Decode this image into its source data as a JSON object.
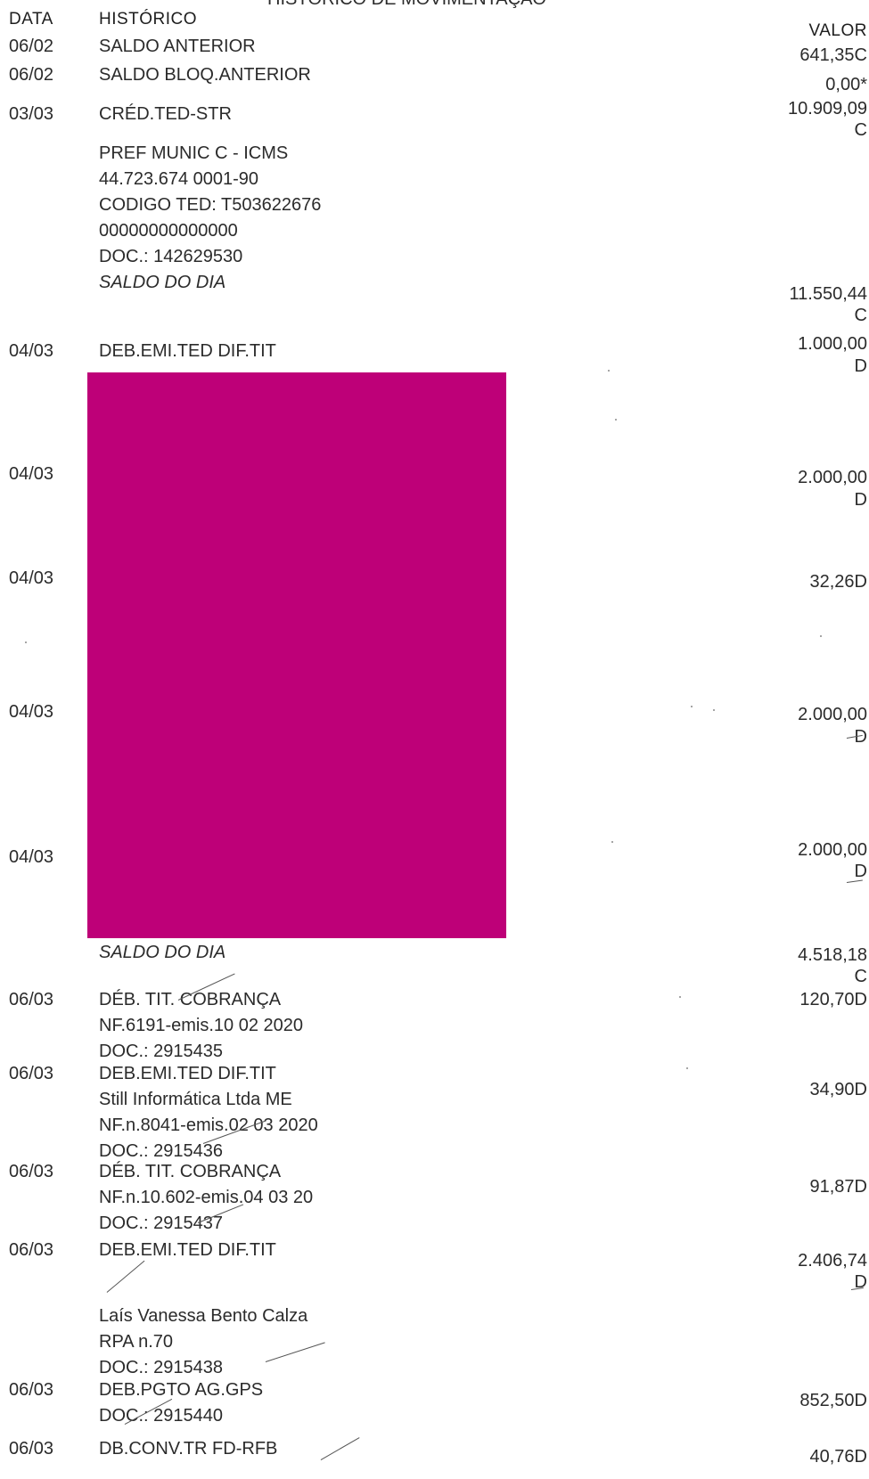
{
  "header": {
    "title_partial": "HISTÓRICO DE MOVIMENTAÇÃO",
    "col_data": "DATA",
    "col_historico": "HISTÓRICO",
    "col_valor": "VALOR"
  },
  "redaction_color": "#BE0078",
  "rows": {
    "r1": {
      "date": "06/02",
      "desc": "SALDO ANTERIOR",
      "value": "641,35C"
    },
    "r2": {
      "date": "06/02",
      "desc": "SALDO BLOQ.ANTERIOR",
      "value": "0,00*"
    },
    "r3": {
      "date": "03/03",
      "desc": "CRÉD.TED-STR",
      "value": "10.909,09",
      "value_suffix": "C",
      "detail": [
        "PREF MUNIC C - ICMS",
        "44.723.674 0001-90",
        "CODIGO TED: T503622676",
        "00000000000000",
        "DOC.: 142629530"
      ]
    },
    "saldo1": {
      "desc": "SALDO DO DIA",
      "value": "11.550,44",
      "value_suffix": "C"
    },
    "r4": {
      "date": "04/03",
      "desc": "DEB.EMI.TED DIF.TIT",
      "value": "1.000,00",
      "value_suffix": "D"
    },
    "r5": {
      "date": "04/03",
      "value": "2.000,00",
      "value_suffix": "D"
    },
    "r6": {
      "date": "04/03",
      "value": "32,26D"
    },
    "r7": {
      "date": "04/03",
      "value": "2.000,00",
      "value_suffix": "D"
    },
    "r8": {
      "date": "04/03",
      "value": "2.000,00",
      "value_suffix": "D"
    },
    "saldo2": {
      "desc": "SALDO DO DIA",
      "value": "4.518,18",
      "value_suffix": "C"
    },
    "r9": {
      "date": "06/03",
      "desc": "DÉB. TIT. COBRANÇA",
      "value": "120,70D",
      "detail": [
        "NF.6191-emis.10 02 2020",
        "DOC.: 2915435"
      ]
    },
    "r10": {
      "date": "06/03",
      "desc": "DEB.EMI.TED DIF.TIT",
      "value": "34,90D",
      "detail": [
        "Still Informática Ltda ME",
        "NF.n.8041-emis.02 03 2020",
        "DOC.: 2915436"
      ]
    },
    "r11": {
      "date": "06/03",
      "desc": "DÉB. TIT. COBRANÇA",
      "value": "91,87D",
      "detail": [
        "NF.n.10.602-emis.04 03 20",
        "DOC.: 2915437"
      ]
    },
    "r12": {
      "date": "06/03",
      "desc": "DEB.EMI.TED DIF.TIT",
      "value": "2.406,74",
      "value_suffix": "D",
      "detail": [
        "Laís Vanessa Bento Calza",
        "RPA n.70",
        "DOC.: 2915438"
      ]
    },
    "r13": {
      "date": "06/03",
      "desc": "DEB.PGTO AG.GPS",
      "value": "852,50D",
      "detail": [
        "DOC.: 2915440"
      ]
    },
    "r14": {
      "date": "06/03",
      "desc": "DB.CONV.TR FD-RFB",
      "value": "40,76D"
    }
  }
}
